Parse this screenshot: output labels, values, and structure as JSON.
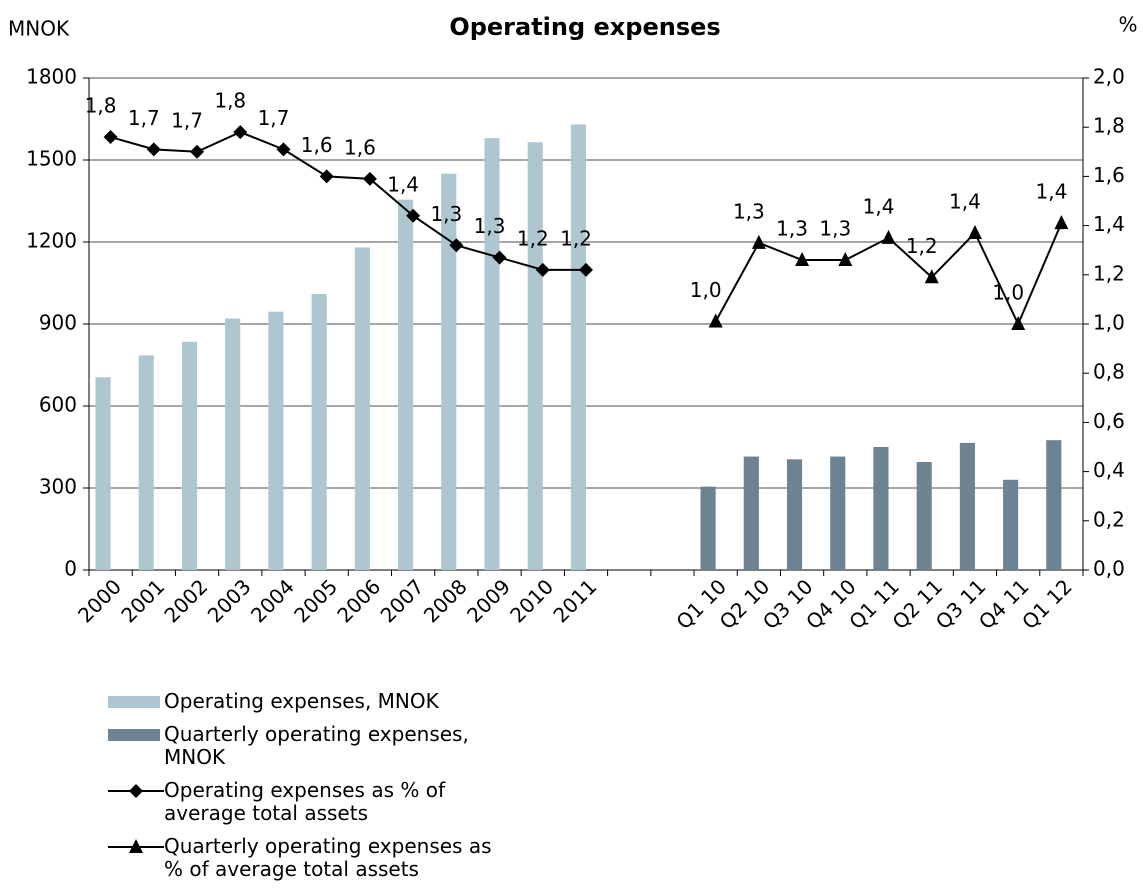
{
  "chart_data": {
    "type": "combo",
    "title": "Operating expenses",
    "ylabel": "MNOK",
    "y2label": "%",
    "categories": [
      "2000",
      "2001",
      "2002",
      "2003",
      "2004",
      "2005",
      "2006",
      "2007",
      "2008",
      "2009",
      "2010",
      "2011",
      null,
      null,
      "Q1 10",
      "Q2 10",
      "Q3 10",
      "Q4 10",
      "Q1 11",
      "Q2 11",
      "Q3 11",
      "Q4 11",
      "Q1 12"
    ],
    "series": [
      {
        "name": "Operating expenses, MNOK",
        "type": "bar",
        "color": "#aec6cf",
        "values": [
          705,
          785,
          835,
          920,
          945,
          1010,
          1180,
          1355,
          1450,
          1580,
          1565,
          1630,
          null,
          null,
          null,
          null,
          null,
          null,
          null,
          null,
          null,
          null,
          null
        ]
      },
      {
        "name": "Quarterly operating expenses, MNOK",
        "type": "bar",
        "color": "#6e8391",
        "values": [
          null,
          null,
          null,
          null,
          null,
          null,
          null,
          null,
          null,
          null,
          null,
          null,
          null,
          null,
          305,
          415,
          405,
          415,
          450,
          395,
          465,
          330,
          475
        ]
      },
      {
        "name": "Operating expenses as % of average total assets",
        "type": "line",
        "axis": "y2",
        "color": "#000000",
        "marker": "diamond",
        "values": [
          1.76,
          1.71,
          1.7,
          1.78,
          1.71,
          1.6,
          1.59,
          1.44,
          1.32,
          1.27,
          1.22,
          1.22,
          null,
          null,
          null,
          null,
          null,
          null,
          null,
          null,
          null,
          null,
          null
        ],
        "value_labels": [
          "1,8",
          "1,7",
          "1,7",
          "1,8",
          "1,7",
          "1,6",
          "1,6",
          "1,4",
          "1,3",
          "1,3",
          "1,2",
          "1,2",
          null,
          null,
          null,
          null,
          null,
          null,
          null,
          null,
          null,
          null,
          null
        ]
      },
      {
        "name": "Quarterly operating expenses as % of average total assets",
        "type": "line",
        "axis": "y2",
        "color": "#000000",
        "marker": "triangle",
        "values": [
          null,
          null,
          null,
          null,
          null,
          null,
          null,
          null,
          null,
          null,
          null,
          null,
          null,
          null,
          1.01,
          1.33,
          1.26,
          1.26,
          1.35,
          1.19,
          1.37,
          1.0,
          1.41
        ],
        "value_labels": [
          null,
          null,
          null,
          null,
          null,
          null,
          null,
          null,
          null,
          null,
          null,
          null,
          null,
          null,
          "1,0",
          "1,3",
          "1,3",
          "1,3",
          "1,4",
          "1,2",
          "1,4",
          "1,0",
          "1,4"
        ]
      }
    ],
    "ylim": [
      0,
      1800
    ],
    "yticks": [
      0,
      300,
      600,
      900,
      1200,
      1500,
      1800
    ],
    "y2lim": [
      0,
      2
    ],
    "y2ticks": [
      {
        "value": 0,
        "label": "0,0"
      },
      {
        "value": 0.2,
        "label": "0,2"
      },
      {
        "value": 0.4,
        "label": "0,4"
      },
      {
        "value": 0.6,
        "label": "0,6"
      },
      {
        "value": 0.8,
        "label": "0,8"
      },
      {
        "value": 1,
        "label": "1,0"
      },
      {
        "value": 1.2,
        "label": "1,2"
      },
      {
        "value": 1.4,
        "label": "1,4"
      },
      {
        "value": 1.6,
        "label": "1,6"
      },
      {
        "value": 1.8,
        "label": "1,8"
      },
      {
        "value": 2,
        "label": "2,0"
      }
    ],
    "grid": true
  }
}
